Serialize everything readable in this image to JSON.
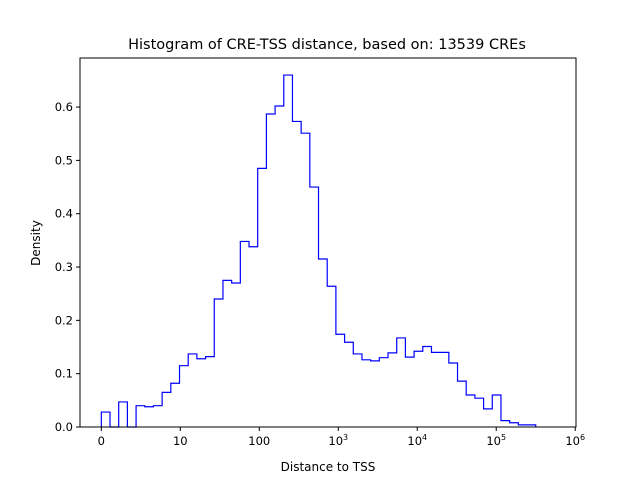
{
  "chart_data": {
    "type": "histogram",
    "title": "Histogram of CRE-TSS distance, based on: 13539 CREs",
    "xlabel": "Distance to TSS",
    "ylabel": "Density",
    "x_scale": "log10 (distance+1)",
    "xlim": [
      -0.27,
      6.01
    ],
    "ylim": [
      0,
      0.692
    ],
    "bin_start": 0,
    "bin_width": 0.11,
    "values": [
      0.028,
      0,
      0.047,
      0,
      0.04,
      0.038,
      0.04,
      0.065,
      0.082,
      0.115,
      0.137,
      0.128,
      0.132,
      0.24,
      0.275,
      0.27,
      0.348,
      0.338,
      0.485,
      0.587,
      0.602,
      0.66,
      0.573,
      0.551,
      0.45,
      0.315,
      0.264,
      0.174,
      0.159,
      0.137,
      0.126,
      0.124,
      0.13,
      0.139,
      0.167,
      0.131,
      0.142,
      0.151,
      0.14,
      0.14,
      0.12,
      0.086,
      0.06,
      0.054,
      0.034,
      0.06,
      0.012,
      0.008,
      0.004,
      0.004
    ],
    "color": "#0000ff",
    "xticks": [
      {
        "pos": 0,
        "base": "0",
        "exp": ""
      },
      {
        "pos": 1,
        "base": "10",
        "exp": ""
      },
      {
        "pos": 2,
        "base": "100",
        "exp": ""
      },
      {
        "pos": 3,
        "base": "10",
        "exp": "3"
      },
      {
        "pos": 4,
        "base": "10",
        "exp": "4"
      },
      {
        "pos": 5,
        "base": "10",
        "exp": "5"
      },
      {
        "pos": 6,
        "base": "10",
        "exp": "6"
      }
    ],
    "yticks": [
      "0.0",
      "0.1",
      "0.2",
      "0.3",
      "0.4",
      "0.5",
      "0.6"
    ],
    "ytick_values": [
      0,
      0.1,
      0.2,
      0.3,
      0.4,
      0.5,
      0.6
    ],
    "grid": false
  }
}
